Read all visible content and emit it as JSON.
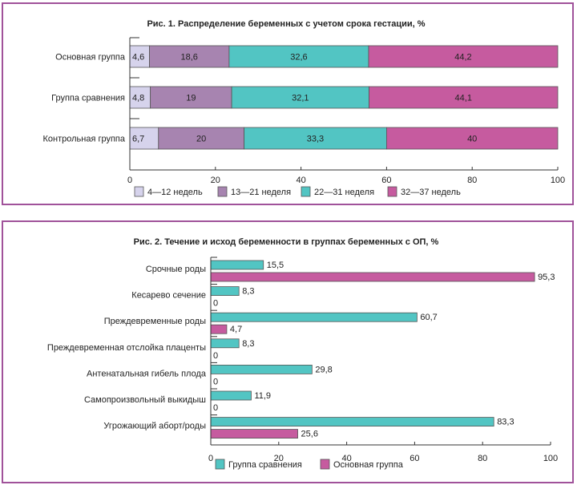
{
  "chart_data": [
    {
      "type": "bar",
      "orientation": "horizontal",
      "stacked": true,
      "title": "Рис. 1. Распределение беременных с учетом срока гестации, %",
      "xlabel": "",
      "ylabel": "",
      "xlim": [
        0,
        100
      ],
      "xticks": [
        "0",
        "20",
        "40",
        "60",
        "80",
        "100"
      ],
      "grid": false,
      "legend_position": "bottom",
      "categories": [
        "Основная группа",
        "Группа сравнения",
        "Контрольная группа"
      ],
      "series": [
        {
          "name": "4—12 недель",
          "color": "#d6d3ec",
          "values": [
            4.6,
            4.8,
            6.7
          ],
          "labels": [
            "4,6",
            "4,8",
            "6,7"
          ]
        },
        {
          "name": "13—21 неделя",
          "color": "#a784b0",
          "values": [
            18.6,
            19,
            20
          ],
          "labels": [
            "18,6",
            "19",
            "20"
          ]
        },
        {
          "name": "22—31 неделя",
          "color": "#52c5c3",
          "values": [
            32.6,
            32.1,
            33.3
          ],
          "labels": [
            "32,6",
            "32,1",
            "33,3"
          ]
        },
        {
          "name": "32—37 недель",
          "color": "#c65b9f",
          "values": [
            44.2,
            44.1,
            40
          ],
          "labels": [
            "44,2",
            "44,1",
            "40"
          ]
        }
      ]
    },
    {
      "type": "bar",
      "orientation": "horizontal",
      "stacked": false,
      "title": "Рис. 2. Течение и исход беременности в группах беременных с ОП, %",
      "xlabel": "",
      "ylabel": "",
      "xlim": [
        0,
        100
      ],
      "xticks": [
        "0",
        "20",
        "40",
        "60",
        "80",
        "100"
      ],
      "grid": false,
      "legend_position": "bottom",
      "categories": [
        "Срочные роды",
        "Кесарево сечение",
        "Преждевременные роды",
        "Преждевременная отслойка плаценты",
        "Антенатальная гибель плода",
        "Самопроизвольный выкидыш",
        "Угрожающий аборт/роды"
      ],
      "series": [
        {
          "name": "Группа сравнения",
          "color": "#52c5c3",
          "values": [
            15.5,
            8.3,
            60.7,
            8.3,
            29.8,
            11.9,
            83.3
          ],
          "labels": [
            "15,5",
            "8,3",
            "60,7",
            "8,3",
            "29,8",
            "11,9",
            "83,3"
          ]
        },
        {
          "name": "Основная группа",
          "color": "#c65b9f",
          "values": [
            95.3,
            0,
            4.7,
            0,
            0,
            0,
            25.6
          ],
          "labels": [
            "95,3",
            "0",
            "4,7",
            "0",
            "0",
            "0",
            "25,6"
          ]
        }
      ]
    }
  ]
}
